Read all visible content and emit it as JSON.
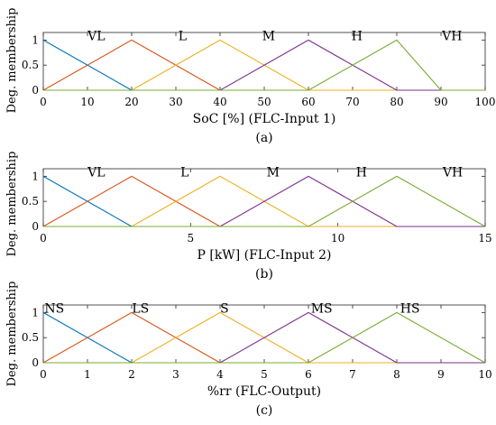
{
  "figure": {
    "colors": [
      "#0072BD",
      "#D95319",
      "#EDB120",
      "#7E2F8E",
      "#77AC30"
    ]
  },
  "chart_data": [
    {
      "type": "line",
      "xlabel": "SoC  [%] (FLC-Input 1)",
      "ylabel": "Deg. membership",
      "caption": "(a)",
      "xlim": [
        0,
        100
      ],
      "ylim": [
        0,
        1.15
      ],
      "xticks": [
        0,
        10,
        20,
        30,
        40,
        50,
        60,
        70,
        80,
        90,
        100
      ],
      "yticks": [
        0,
        0.5,
        1
      ],
      "yticklabels": [
        "0",
        "0.5",
        "1"
      ],
      "series": [
        {
          "name": "VL",
          "x": [
            0,
            20,
            100
          ],
          "y": [
            1,
            0,
            0
          ]
        },
        {
          "name": "L",
          "x": [
            0,
            20,
            40,
            100
          ],
          "y": [
            0,
            1,
            0,
            0
          ]
        },
        {
          "name": "M",
          "x": [
            0,
            20,
            40,
            60,
            100
          ],
          "y": [
            0,
            0,
            1,
            0,
            0
          ]
        },
        {
          "name": "H",
          "x": [
            0,
            40,
            60,
            80,
            100
          ],
          "y": [
            0,
            0,
            1,
            0,
            0
          ]
        },
        {
          "name": "VH",
          "x": [
            0,
            60,
            80,
            90,
            100
          ],
          "y": [
            0,
            0,
            1,
            0,
            0
          ]
        }
      ],
      "labels": [
        {
          "text": "VL",
          "x": 12,
          "y": 1.0
        },
        {
          "text": "L",
          "x": 31.5,
          "y": 1.0
        },
        {
          "text": "M",
          "x": 51,
          "y": 1.0
        },
        {
          "text": "H",
          "x": 71,
          "y": 1.0
        },
        {
          "text": "VH",
          "x": 92.5,
          "y": 1.0
        }
      ]
    },
    {
      "type": "line",
      "xlabel": "P  [kW] (FLC-Input 2)",
      "ylabel": "Deg. membership",
      "caption": "(b)",
      "xlim": [
        0,
        15
      ],
      "ylim": [
        0,
        1.15
      ],
      "xticks": [
        0,
        5,
        10,
        15
      ],
      "yticks": [
        0,
        0.5,
        1
      ],
      "yticklabels": [
        "0",
        "0.5",
        "1"
      ],
      "series": [
        {
          "name": "VL",
          "x": [
            0,
            3,
            15
          ],
          "y": [
            1,
            0,
            0
          ]
        },
        {
          "name": "L",
          "x": [
            0,
            3,
            6,
            15
          ],
          "y": [
            0,
            1,
            0,
            0
          ]
        },
        {
          "name": "M",
          "x": [
            0,
            3,
            6,
            9,
            15
          ],
          "y": [
            0,
            0,
            1,
            0,
            0
          ]
        },
        {
          "name": "H",
          "x": [
            0,
            6,
            9,
            12,
            15
          ],
          "y": [
            0,
            0,
            1,
            0,
            0
          ]
        },
        {
          "name": "VH",
          "x": [
            0,
            9,
            12,
            15
          ],
          "y": [
            0,
            0,
            1,
            0
          ]
        }
      ],
      "labels": [
        {
          "text": "VL",
          "x": 1.8,
          "y": 1.0
        },
        {
          "text": "L",
          "x": 4.8,
          "y": 1.0
        },
        {
          "text": "M",
          "x": 7.8,
          "y": 1.0
        },
        {
          "text": "H",
          "x": 10.8,
          "y": 1.0
        },
        {
          "text": "VH",
          "x": 13.9,
          "y": 1.0
        }
      ]
    },
    {
      "type": "line",
      "xlabel": "%rr (FLC-Output)",
      "ylabel": "Deg. membership",
      "caption": "(c)",
      "xlim": [
        0,
        10
      ],
      "ylim": [
        0,
        1.15
      ],
      "xticks": [
        0,
        1,
        2,
        3,
        4,
        5,
        6,
        7,
        8,
        9,
        10
      ],
      "yticks": [
        0,
        0.5,
        1
      ],
      "yticklabels": [
        "0",
        "0.5",
        "1"
      ],
      "series": [
        {
          "name": "NS",
          "x": [
            0,
            2,
            10
          ],
          "y": [
            1,
            0,
            0
          ]
        },
        {
          "name": "LS",
          "x": [
            0,
            2,
            4,
            10
          ],
          "y": [
            0,
            1,
            0,
            0
          ]
        },
        {
          "name": "S",
          "x": [
            0,
            2,
            4,
            6,
            10
          ],
          "y": [
            0,
            0,
            1,
            0,
            0
          ]
        },
        {
          "name": "MS",
          "x": [
            0,
            4,
            6,
            8,
            10
          ],
          "y": [
            0,
            0,
            1,
            0,
            0
          ]
        },
        {
          "name": "HS",
          "x": [
            0,
            6,
            8,
            10
          ],
          "y": [
            0,
            0,
            1,
            0
          ]
        }
      ],
      "labels": [
        {
          "text": "NS",
          "x": 0.25,
          "y": 1.0
        },
        {
          "text": "LS",
          "x": 2.2,
          "y": 1.0
        },
        {
          "text": "S",
          "x": 4.1,
          "y": 1.0
        },
        {
          "text": "MS",
          "x": 6.3,
          "y": 1.0
        },
        {
          "text": "HS",
          "x": 8.3,
          "y": 1.0
        }
      ]
    }
  ]
}
